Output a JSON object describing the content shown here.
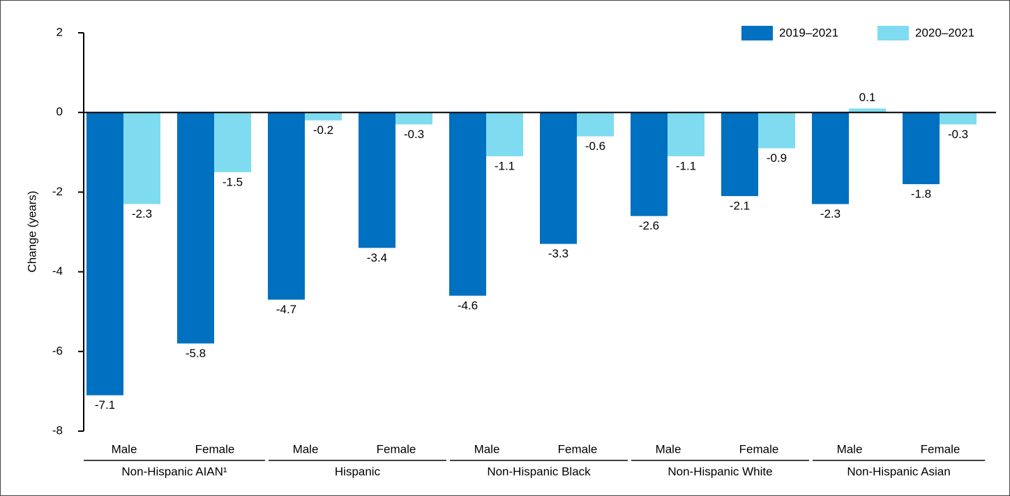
{
  "chart_data": {
    "type": "bar",
    "y_label": "Change (years)",
    "categories": [
      "Male",
      "Female",
      "Male",
      "Female",
      "Male",
      "Female",
      "Male",
      "Female",
      "Male",
      "Female"
    ],
    "groups": [
      "Non-Hispanic AIAN¹",
      "Hispanic",
      "Non-Hispanic Black",
      "Non-Hispanic White",
      "Non-Hispanic Asian"
    ],
    "series": [
      {
        "name": "2019–2021",
        "color": "#0070c0",
        "values": [
          -7.1,
          -5.8,
          -4.7,
          -3.4,
          -4.6,
          -3.3,
          -2.6,
          -2.1,
          -2.3,
          -1.8
        ]
      },
      {
        "name": "2020–2021",
        "color": "#7fdcf0",
        "values": [
          -2.3,
          -1.5,
          -0.2,
          -0.3,
          -1.1,
          -0.6,
          -1.1,
          -0.9,
          0.1,
          -0.3
        ]
      }
    ],
    "ylim": [
      -8,
      2
    ],
    "yticks": [
      2,
      0,
      -2,
      -4,
      -6,
      -8
    ],
    "legend": "top-right"
  }
}
